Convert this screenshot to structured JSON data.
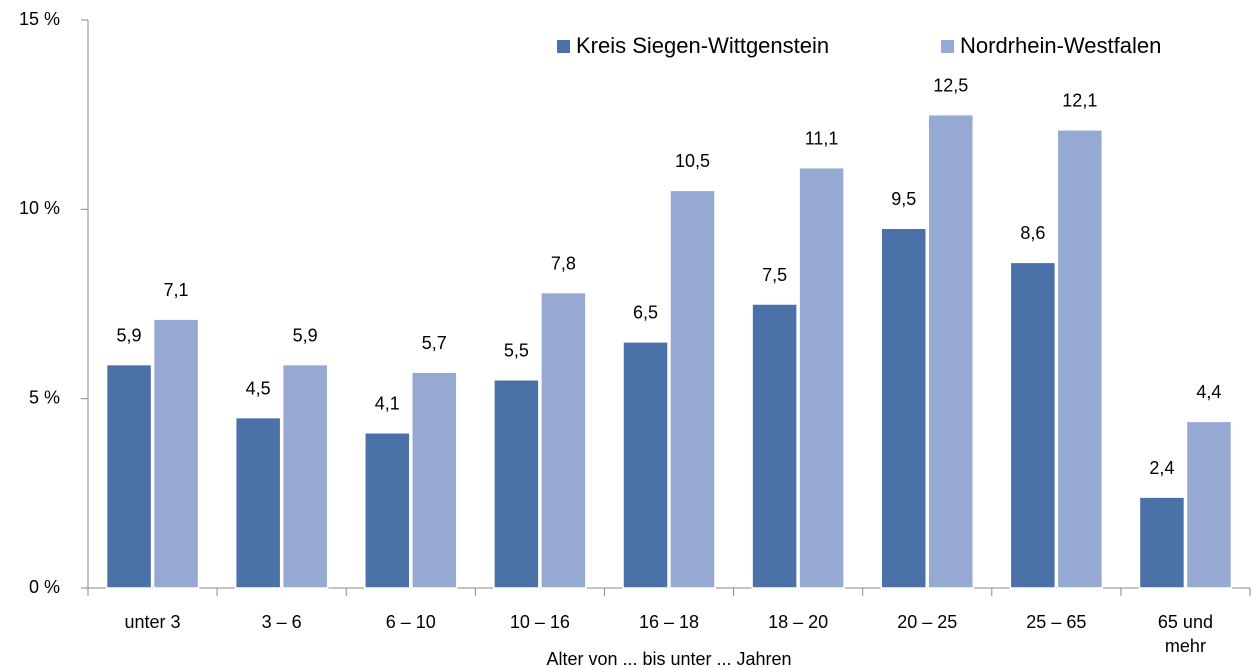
{
  "chart_data": {
    "type": "bar",
    "x_label": "Alter von ... bis unter ... Jahren",
    "categories": [
      "unter 3",
      "3 –  6",
      "6 – 10",
      "10 – 16",
      "16 – 18",
      "18 – 20",
      "20 – 25",
      "25 – 65",
      "65 und mehr"
    ],
    "series": [
      {
        "name": "Kreis Siegen-Wittgenstein",
        "color": "#4a72a8",
        "values": [
          5.9,
          4.5,
          4.1,
          5.5,
          6.5,
          7.5,
          9.5,
          8.6,
          2.4
        ],
        "value_labels": [
          "5,9",
          "4,5",
          "4,1",
          "5,5",
          "6,5",
          "7,5",
          "9,5",
          "8,6",
          "2,4"
        ]
      },
      {
        "name": "Nordrhein-Westfalen",
        "color": "#95a9d2",
        "values": [
          7.1,
          5.9,
          5.7,
          7.8,
          10.5,
          11.1,
          12.5,
          12.1,
          4.4
        ],
        "value_labels": [
          "7,1",
          "5,9",
          "5,7",
          "7,8",
          "10,5",
          "11,1",
          "12,5",
          "12,1",
          "4,4"
        ]
      }
    ],
    "ylim": [
      0,
      15
    ],
    "yticks": [
      {
        "value": 0,
        "label": "0 %"
      },
      {
        "value": 5,
        "label": "5 %"
      },
      {
        "value": 10,
        "label": "10 %"
      },
      {
        "value": 15,
        "label": "15 %"
      }
    ],
    "legend": "top-right"
  }
}
